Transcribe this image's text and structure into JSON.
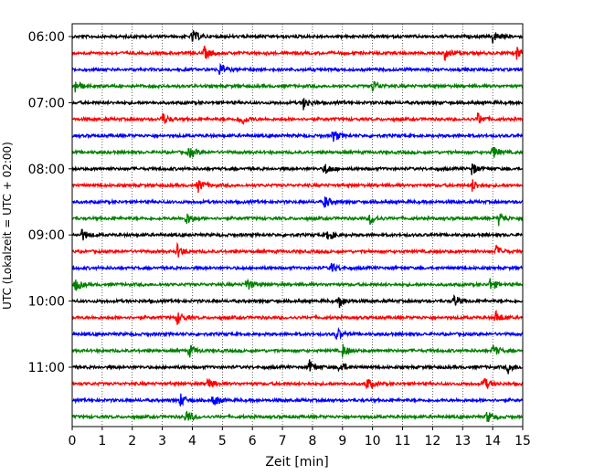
{
  "chart_data": {
    "type": "line",
    "title": "",
    "xlabel": "Zeit  [min]",
    "ylabel": "UTC (Lokalzeit = UTC + 02:00)",
    "xlim": [
      0,
      15
    ],
    "x_ticks": [
      0,
      1,
      2,
      3,
      4,
      5,
      6,
      7,
      8,
      9,
      10,
      11,
      12,
      13,
      14,
      15
    ],
    "x_tick_labels": [
      "0",
      "1",
      "2",
      "3",
      "4",
      "5",
      "6",
      "7",
      "8",
      "9",
      "10",
      "11",
      "12",
      "13",
      "14",
      "15"
    ],
    "y_tick_labels": [
      "06:00",
      "07:00",
      "08:00",
      "09:00",
      "10:00",
      "11:00"
    ],
    "y_tick_rows": [
      0,
      4,
      8,
      12,
      16,
      20
    ],
    "grid": "vertical-dotted",
    "row_count": 24,
    "color_cycle": [
      "#000000",
      "#ff0000",
      "#0000ff",
      "#008000"
    ],
    "events": [
      [
        4.0,
        14.0
      ],
      [
        4.4,
        12.4,
        14.8
      ],
      [
        4.9
      ],
      [
        0.1,
        10.0
      ],
      [
        7.7
      ],
      [
        3.0,
        5.6,
        13.5
      ],
      [
        8.7
      ],
      [
        3.9,
        14.0
      ],
      [
        8.4,
        13.3
      ],
      [
        4.2,
        13.3
      ],
      [
        8.4
      ],
      [
        3.8,
        9.9,
        14.2
      ],
      [
        0.3,
        8.5
      ],
      [
        3.5,
        14.1
      ],
      [
        8.6
      ],
      [
        0.1,
        5.8,
        13.9
      ],
      [
        8.9,
        12.7
      ],
      [
        3.5,
        14.1
      ],
      [
        8.8
      ],
      [
        3.9,
        9.0,
        14.0
      ],
      [
        7.9,
        8.9,
        14.5
      ],
      [
        4.5,
        9.8,
        13.7
      ],
      [
        3.6,
        4.7
      ],
      [
        3.8,
        13.8
      ]
    ]
  }
}
